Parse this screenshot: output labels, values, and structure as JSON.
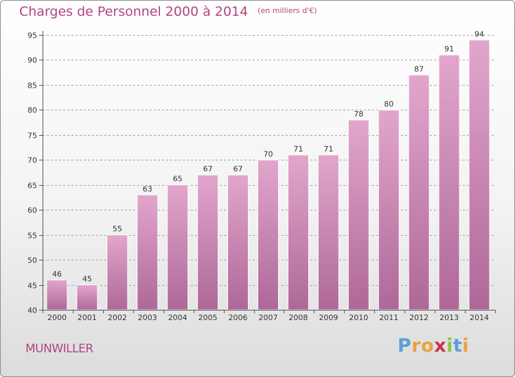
{
  "chart_data": {
    "type": "bar",
    "title": "Charges de Personnel 2000 à 2014",
    "subtitle": "(en milliers d'€)",
    "categories": [
      "2000",
      "2001",
      "2002",
      "2003",
      "2004",
      "2005",
      "2006",
      "2007",
      "2008",
      "2009",
      "2010",
      "2011",
      "2012",
      "2013",
      "2014"
    ],
    "values": [
      46,
      45,
      55,
      63,
      65,
      67,
      67,
      70,
      71,
      71,
      78,
      80,
      87,
      91,
      94
    ],
    "ylim": [
      40,
      95
    ],
    "yticks": [
      40,
      45,
      50,
      55,
      60,
      65,
      70,
      75,
      80,
      85,
      90,
      95
    ],
    "grid": true,
    "xlabel": "",
    "ylabel": ""
  },
  "place_name": "MUNWILLER",
  "logo": {
    "text": "Proxiti",
    "letter_colors": [
      "#5aa0d8",
      "#e8a33a",
      "#e8a33a",
      "#c8354a",
      "#8cc24a",
      "#5aa0d8",
      "#e8a33a"
    ]
  },
  "colors": {
    "title": "#b0457e",
    "bar_top": "#e2a6cc",
    "bar_bottom": "#ae6898",
    "grid": "#a0a0a0"
  }
}
